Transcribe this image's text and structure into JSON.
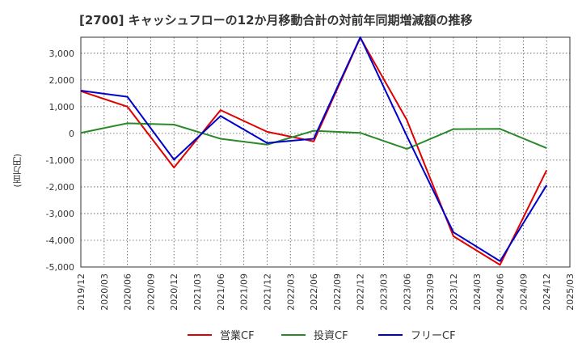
{
  "header": {
    "title": "[2700]  キャッシュフローの12か月移動合計の対前年同期増減額の推移",
    "y_unit": "(百万円)"
  },
  "chart_data": {
    "type": "line",
    "title": "[2700]  キャッシュフローの12か月移動合計の対前年同期増減額の推移",
    "ylabel": "(百万円)",
    "xlabel": "",
    "ylim": [
      -5000,
      3600
    ],
    "yticks": [
      3000,
      2000,
      1000,
      0,
      -1000,
      -2000,
      -3000,
      -4000,
      -5000
    ],
    "ytick_labels": [
      "3,000",
      "2,000",
      "1,000",
      "0",
      "-1,000",
      "-2,000",
      "-3,000",
      "-4,000",
      "-5,000"
    ],
    "x": [
      "2019/12",
      "2020/03",
      "2020/06",
      "2020/09",
      "2020/12",
      "2021/03",
      "2021/06",
      "2021/09",
      "2021/12",
      "2022/03",
      "2022/06",
      "2022/09",
      "2022/12",
      "2023/03",
      "2023/06",
      "2023/09",
      "2023/12",
      "2024/03",
      "2024/06",
      "2024/09",
      "2024/12",
      "2025/03"
    ],
    "grid": true,
    "legend_position": "bottom",
    "series": [
      {
        "name": "営業CF",
        "color": "#e00000",
        "x": [
          "2019/12",
          "2020/06",
          "2020/12",
          "2021/06",
          "2021/12",
          "2022/06",
          "2022/12",
          "2023/06",
          "2023/12",
          "2024/06",
          "2024/12"
        ],
        "values": [
          1580,
          1000,
          -1280,
          870,
          60,
          -300,
          3580,
          500,
          -3850,
          -4920,
          -1380
        ]
      },
      {
        "name": "投資CF",
        "color": "#2a8a2a",
        "x": [
          "2019/12",
          "2020/06",
          "2020/12",
          "2021/06",
          "2021/12",
          "2022/06",
          "2022/12",
          "2023/06",
          "2023/12",
          "2024/06",
          "2024/12"
        ],
        "values": [
          20,
          380,
          330,
          -200,
          -420,
          100,
          20,
          -580,
          160,
          170,
          -550
        ]
      },
      {
        "name": "フリーCF",
        "color": "#0000cc",
        "x": [
          "2019/12",
          "2020/06",
          "2020/12",
          "2021/06",
          "2021/12",
          "2022/06",
          "2022/12",
          "2023/06",
          "2023/12",
          "2024/06",
          "2024/12"
        ],
        "values": [
          1600,
          1370,
          -980,
          650,
          -360,
          -200,
          3600,
          -100,
          -3700,
          -4780,
          -1940
        ]
      }
    ]
  }
}
